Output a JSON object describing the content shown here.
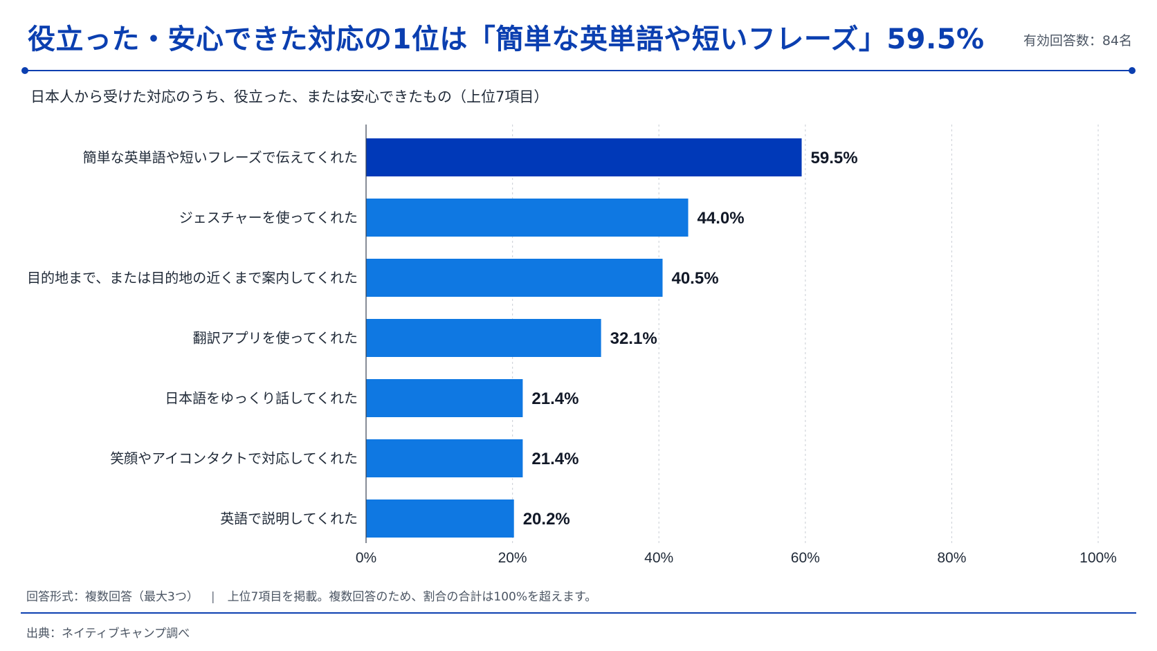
{
  "header": {
    "title": "役立った・安心できた対応の1位は「簡単な英単語や短いフレーズ」59.5%",
    "respondents": "有効回答数：84名"
  },
  "subtitle": "日本人から受けた対応のうち、役立った、または安心できたもの（上位7項目）",
  "footer": {
    "answer_format": "回答形式：複数回答（最大3つ）",
    "separator": "|",
    "note": "上位7項目を掲載。複数回答のため、割合の合計は100%を超えます。",
    "source": "出典：ネイティブキャンプ調べ"
  },
  "colors": {
    "accent": "#0b3fb0",
    "top_bar": "#0039b8",
    "bar": "#0f78e2",
    "grid": "#d1d5db",
    "label_text": "#1f2937",
    "value_text": "#111827"
  },
  "chart_data": {
    "type": "bar",
    "orientation": "horizontal",
    "title": "日本人から受けた対応のうち、役立った、または安心できたもの（上位7項目）",
    "categories": [
      "簡単な英単語や短いフレーズで伝えてくれた",
      "ジェスチャーを使ってくれた",
      "目的地まで、または目的地の近くまで案内してくれた",
      "翻訳アプリを使ってくれた",
      "日本語をゆっくり話してくれた",
      "笑顔やアイコンタクトで対応してくれた",
      "英語で説明してくれた"
    ],
    "values": [
      59.5,
      44.0,
      40.5,
      32.1,
      21.4,
      21.4,
      20.2
    ],
    "value_labels": [
      "59.5%",
      "44.0%",
      "40.5%",
      "32.1%",
      "21.4%",
      "21.4%",
      "20.2%"
    ],
    "xlim": [
      0,
      100
    ],
    "xticks": [
      0,
      20,
      40,
      60,
      80,
      100
    ],
    "xtick_labels": [
      "0%",
      "20%",
      "40%",
      "60%",
      "80%",
      "100%"
    ],
    "grid": true,
    "highlight_index": 0
  }
}
